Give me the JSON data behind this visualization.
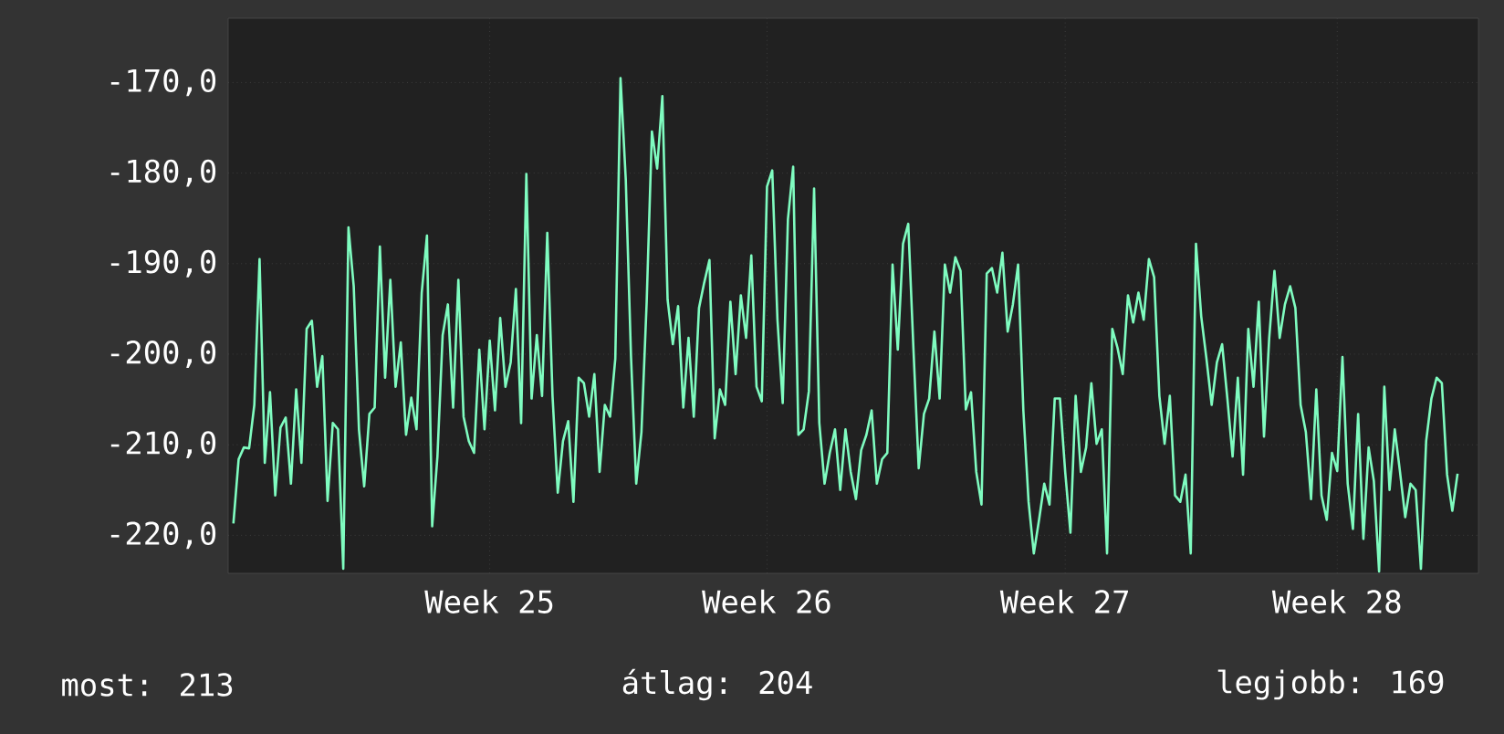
{
  "chart_data": {
    "type": "line",
    "color": "#7ffcc0",
    "categories": [
      null,
      null,
      null,
      null,
      null,
      null,
      null,
      null,
      null,
      null,
      null,
      null,
      null,
      null,
      null,
      null,
      null,
      null,
      null,
      null,
      null,
      null,
      null,
      null,
      null,
      null,
      null,
      null,
      null,
      null,
      null,
      null,
      null,
      null,
      null,
      null,
      null,
      null,
      null,
      null,
      null,
      null,
      null,
      null,
      null,
      null,
      null,
      null,
      null,
      "Week 25",
      null,
      null,
      null,
      null,
      null,
      null,
      null,
      null,
      null,
      null,
      null,
      null,
      null,
      null,
      null,
      null,
      null,
      null,
      null,
      null,
      null,
      null,
      null,
      null,
      null,
      null,
      null,
      null,
      null,
      null,
      null,
      null,
      null,
      null,
      null,
      null,
      null,
      null,
      null,
      null,
      null,
      null,
      null,
      null,
      null,
      null,
      null,
      null,
      null,
      null,
      null,
      null,
      "Week 26",
      null,
      null,
      null,
      null,
      null,
      null,
      null,
      null,
      null,
      null,
      null,
      null,
      null,
      null,
      null,
      null,
      null,
      null,
      null,
      null,
      null,
      null,
      null,
      null,
      null,
      null,
      null,
      null,
      null,
      null,
      null,
      null,
      null,
      null,
      null,
      null,
      null,
      null,
      null,
      null,
      null,
      null,
      null,
      null,
      null,
      null,
      null,
      null,
      null,
      null,
      null,
      null,
      null,
      null,
      null,
      null,
      "Week 27",
      null,
      null,
      null,
      null,
      null,
      null,
      null,
      null,
      null,
      null,
      null,
      null,
      null,
      null,
      null,
      null,
      null,
      null,
      null,
      null,
      null,
      null,
      null,
      null,
      null,
      null,
      null,
      null,
      null,
      null,
      null,
      null,
      null,
      null,
      null,
      null,
      null,
      null,
      null,
      null,
      null,
      null,
      null,
      null,
      null,
      null,
      null,
      null,
      null,
      null,
      null,
      "Week 28",
      null,
      null,
      null,
      null,
      null,
      null,
      null,
      null,
      null,
      null,
      null,
      null,
      null,
      null,
      null,
      null,
      null,
      null,
      null,
      null,
      null,
      null,
      null
    ],
    "values": [
      -218.7,
      -211.6,
      -210.3,
      -210.4,
      -205.6,
      -189.5,
      -212.0,
      -204.2,
      -215.6,
      -208.1,
      -207.0,
      -214.3,
      -203.9,
      -212.0,
      -197.2,
      -196.3,
      -203.6,
      -200.2,
      -216.2,
      -207.6,
      -208.3,
      -223.7,
      -186.0,
      -192.5,
      -208.3,
      -214.6,
      -206.6,
      -205.9,
      -188.1,
      -202.6,
      -191.8,
      -203.6,
      -198.7,
      -208.9,
      -204.8,
      -208.3,
      -193.2,
      -186.9,
      -219.0,
      -211.3,
      -197.9,
      -194.5,
      -205.9,
      -191.8,
      -206.9,
      -209.6,
      -210.9,
      -199.5,
      -208.3,
      -198.5,
      -206.2,
      -196.0,
      -203.6,
      -200.9,
      -192.8,
      -207.6,
      -180.1,
      -204.9,
      -197.9,
      -204.6,
      -186.6,
      -204.6,
      -215.3,
      -209.6,
      -207.4,
      -216.3,
      -202.6,
      -203.2,
      -206.9,
      -202.2,
      -213.0,
      -205.6,
      -206.9,
      -200.5,
      -169.5,
      -180.7,
      -200.2,
      -214.3,
      -208.6,
      -194.2,
      -175.4,
      -179.5,
      -171.5,
      -194.0,
      -198.9,
      -194.7,
      -205.9,
      -198.2,
      -206.9,
      -194.9,
      -192.1,
      -189.6,
      -209.3,
      -203.9,
      -205.6,
      -194.2,
      -202.2,
      -193.5,
      -198.2,
      -189.1,
      -203.6,
      -205.2,
      -181.5,
      -179.7,
      -196.2,
      -205.4,
      -185.1,
      -179.3,
      -208.9,
      -208.3,
      -204.1,
      -181.7,
      -207.6,
      -214.3,
      -210.9,
      -208.3,
      -215.0,
      -208.3,
      -213.0,
      -216.0,
      -210.6,
      -208.9,
      -206.2,
      -214.3,
      -211.6,
      -210.9,
      -190.1,
      -199.5,
      -187.8,
      -185.6,
      -199.5,
      -212.6,
      -206.6,
      -204.9,
      -197.5,
      -204.9,
      -190.1,
      -193.2,
      -189.3,
      -190.8,
      -206.1,
      -204.2,
      -213.0,
      -216.6,
      -191.1,
      -190.5,
      -193.2,
      -188.8,
      -197.5,
      -194.5,
      -190.1,
      -206.2,
      -216.3,
      -222.0,
      -218.3,
      -214.3,
      -216.6,
      -204.9,
      -204.9,
      -213.0,
      -219.7,
      -204.6,
      -213.0,
      -210.3,
      -203.2,
      -209.9,
      -208.3,
      -222.0,
      -197.2,
      -199.3,
      -202.2,
      -193.5,
      -196.5,
      -193.2,
      -196.2,
      -189.5,
      -191.5,
      -204.6,
      -209.9,
      -204.6,
      -215.6,
      -216.3,
      -213.3,
      -222.0,
      -187.8,
      -195.8,
      -200.5,
      -205.6,
      -200.9,
      -198.9,
      -204.9,
      -211.3,
      -202.6,
      -213.3,
      -197.2,
      -203.6,
      -194.2,
      -209.1,
      -198.2,
      -190.8,
      -198.2,
      -194.5,
      -192.5,
      -194.9,
      -205.6,
      -208.6,
      -216.0,
      -203.9,
      -215.6,
      -218.3,
      -210.9,
      -212.9,
      -200.3,
      -214.3,
      -219.3,
      -206.6,
      -220.4,
      -210.3,
      -214.0,
      -224.0,
      -203.6,
      -215.0,
      -208.3,
      -213.0,
      -218.0,
      -214.3,
      -215.0,
      -223.7,
      -209.6,
      -204.9,
      -202.6,
      -203.2,
      -213.3,
      -217.3,
      -213.2
    ],
    "ylim": [
      -224.2,
      -162.9
    ],
    "yticks": [
      {
        "value": -220,
        "label": "-220,0"
      },
      {
        "value": -210,
        "label": "-210,0"
      },
      {
        "value": -200,
        "label": "-200,0"
      },
      {
        "value": -190,
        "label": "-190,0"
      },
      {
        "value": -180,
        "label": "-180,0"
      },
      {
        "value": -170,
        "label": "-170,0"
      }
    ],
    "grid": true,
    "marker": "none",
    "line_style": "solid",
    "annotations": [
      "most: 213",
      "átlag: 204",
      "legjobb: 169"
    ]
  }
}
